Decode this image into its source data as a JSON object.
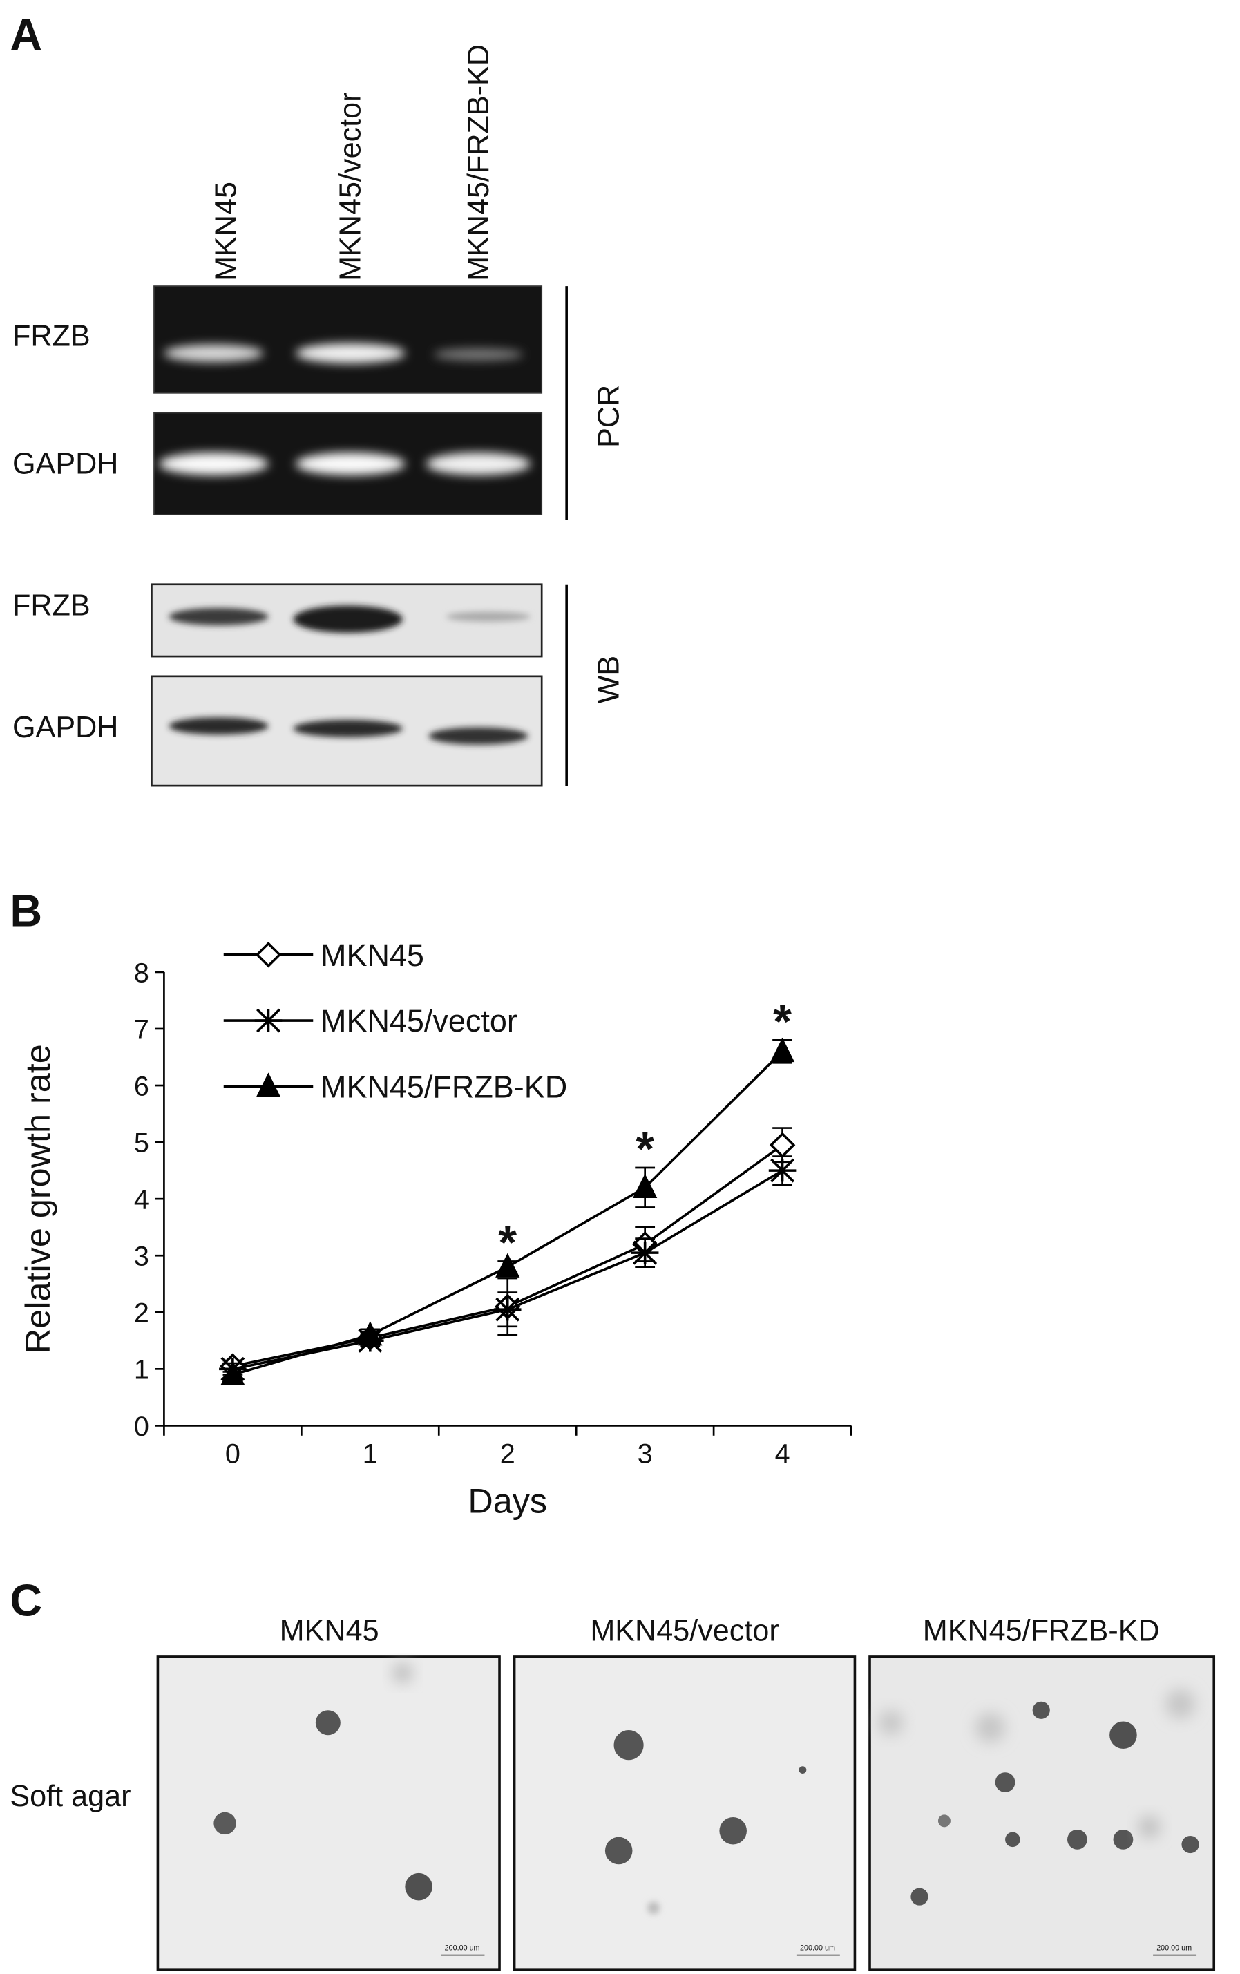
{
  "panel_a": {
    "label": "A",
    "lanes": [
      "MKN45",
      "MKN45/vector",
      "MKN45/FRZB-KD"
    ],
    "pcr": {
      "label": "PCR",
      "rows": [
        "FRZB",
        "GAPDH"
      ]
    },
    "wb": {
      "label": "WB",
      "rows": [
        "FRZB",
        "GAPDH"
      ]
    }
  },
  "panel_b": {
    "label": "B"
  },
  "chart_data": {
    "type": "line",
    "y_label": "Relative growth rate",
    "x_label": "Days",
    "categories": [
      "0",
      "1",
      "2",
      "3",
      "4"
    ],
    "ylim": [
      0,
      8
    ],
    "yticks": [
      0,
      1,
      2,
      3,
      4,
      5,
      6,
      7,
      8
    ],
    "legend": "top-left",
    "series": [
      {
        "name": "MKN45",
        "color": "#000000",
        "marker": "diamond",
        "values": [
          1.05,
          1.55,
          2.1,
          3.2,
          4.95
        ],
        "errors": [
          0.1,
          0.1,
          0.5,
          0.3,
          0.3
        ]
      },
      {
        "name": "MKN45/vector",
        "color": "#000000",
        "marker": "star",
        "values": [
          1.0,
          1.5,
          2.05,
          3.05,
          4.5
        ],
        "errors": [
          0.1,
          0.1,
          0.3,
          0.25,
          0.25
        ]
      },
      {
        "name": "MKN45/FRZB-KD",
        "color": "#000000",
        "marker": "triangle",
        "values": [
          0.9,
          1.6,
          2.8,
          4.2,
          6.6
        ],
        "errors": [
          0.1,
          0.1,
          0.1,
          0.35,
          0.2
        ]
      }
    ],
    "annotations": [
      {
        "text": "*",
        "x": "2"
      },
      {
        "text": "*",
        "x": "3"
      },
      {
        "text": "*",
        "x": "4"
      }
    ]
  },
  "panel_c": {
    "label": "C",
    "columns": [
      "MKN45",
      "MKN45/vector",
      "MKN45/FRZB-KD"
    ],
    "row_label": "Soft agar",
    "scale_bar": "200.00 um"
  }
}
